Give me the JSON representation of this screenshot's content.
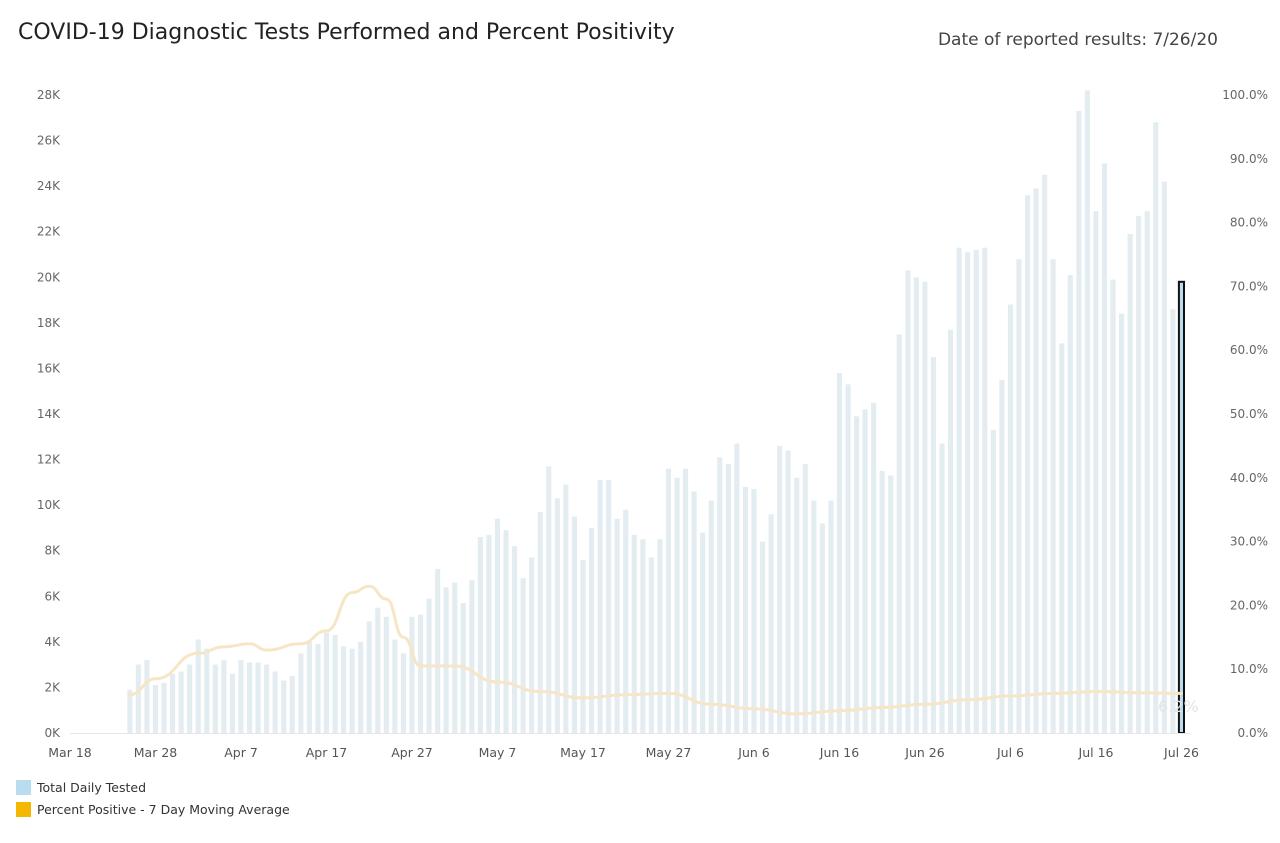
{
  "header": {
    "title": "COVID-19 Diagnostic Tests Performed and Percent Positivity",
    "date_label": "Date of reported results: 7/26/20"
  },
  "legend": {
    "items": [
      {
        "label": "Total Daily Tested",
        "color": "#b9dcef"
      },
      {
        "label": "Percent Positive - 7 Day Moving Average",
        "color": "#f5b800"
      }
    ]
  },
  "chart_data": {
    "type": "bar",
    "bar_color": "#e3ecf1",
    "highlight_bar_color": "#b9dcef",
    "line_color": "#f6e6c5",
    "x_start": "2020-03-18",
    "x_end": "2020-07-27",
    "x_ticks": [
      "Mar 18",
      "Mar 28",
      "Apr 7",
      "Apr 17",
      "Apr 27",
      "May 7",
      "May 17",
      "May 27",
      "Jun 6",
      "Jun 16",
      "Jun 26",
      "Jul 6",
      "Jul 16",
      "Jul 26"
    ],
    "y_left": {
      "ticks": [
        "0K",
        "2K",
        "4K",
        "6K",
        "8K",
        "10K",
        "12K",
        "14K",
        "16K",
        "18K",
        "20K",
        "22K",
        "24K",
        "26K",
        "28K"
      ],
      "min": 0,
      "max": 28000
    },
    "y_right": {
      "ticks": [
        "0.0%",
        "10.0%",
        "20.0%",
        "30.0%",
        "40.0%",
        "50.0%",
        "60.0%",
        "70.0%",
        "80.0%",
        "90.0%",
        "100.0%"
      ],
      "min": 0,
      "max": 100
    },
    "series": [
      {
        "name": "Total Daily Tested",
        "x": [
          "2020-03-25",
          "2020-03-26",
          "2020-03-27",
          "2020-03-28",
          "2020-03-29",
          "2020-03-30",
          "2020-03-31",
          "2020-04-01",
          "2020-04-02",
          "2020-04-03",
          "2020-04-04",
          "2020-04-05",
          "2020-04-06",
          "2020-04-07",
          "2020-04-08",
          "2020-04-09",
          "2020-04-10",
          "2020-04-11",
          "2020-04-12",
          "2020-04-13",
          "2020-04-14",
          "2020-04-15",
          "2020-04-16",
          "2020-04-17",
          "2020-04-18",
          "2020-04-19",
          "2020-04-20",
          "2020-04-21",
          "2020-04-22",
          "2020-04-23",
          "2020-04-24",
          "2020-04-25",
          "2020-04-26",
          "2020-04-27",
          "2020-04-28",
          "2020-04-29",
          "2020-04-30",
          "2020-05-01",
          "2020-05-02",
          "2020-05-03",
          "2020-05-04",
          "2020-05-05",
          "2020-05-06",
          "2020-05-07",
          "2020-05-08",
          "2020-05-09",
          "2020-05-10",
          "2020-05-11",
          "2020-05-12",
          "2020-05-13",
          "2020-05-14",
          "2020-05-15",
          "2020-05-16",
          "2020-05-17",
          "2020-05-18",
          "2020-05-19",
          "2020-05-20",
          "2020-05-21",
          "2020-05-22",
          "2020-05-23",
          "2020-05-24",
          "2020-05-25",
          "2020-05-26",
          "2020-05-27",
          "2020-05-28",
          "2020-05-29",
          "2020-05-30",
          "2020-05-31",
          "2020-06-01",
          "2020-06-02",
          "2020-06-03",
          "2020-06-04",
          "2020-06-05",
          "2020-06-06",
          "2020-06-07",
          "2020-06-08",
          "2020-06-09",
          "2020-06-10",
          "2020-06-11",
          "2020-06-12",
          "2020-06-13",
          "2020-06-14",
          "2020-06-15",
          "2020-06-16",
          "2020-06-17",
          "2020-06-18",
          "2020-06-19",
          "2020-06-20",
          "2020-06-21",
          "2020-06-22",
          "2020-06-23",
          "2020-06-24",
          "2020-06-25",
          "2020-06-26",
          "2020-06-27",
          "2020-06-28",
          "2020-06-29",
          "2020-06-30",
          "2020-07-01",
          "2020-07-02",
          "2020-07-03",
          "2020-07-04",
          "2020-07-05",
          "2020-07-06",
          "2020-07-07",
          "2020-07-08",
          "2020-07-09",
          "2020-07-10",
          "2020-07-11",
          "2020-07-12",
          "2020-07-13",
          "2020-07-14",
          "2020-07-15",
          "2020-07-16",
          "2020-07-17",
          "2020-07-18",
          "2020-07-19",
          "2020-07-20",
          "2020-07-21",
          "2020-07-22",
          "2020-07-23",
          "2020-07-24",
          "2020-07-25",
          "2020-07-26"
        ],
        "values": [
          1900,
          3000,
          3200,
          2100,
          2200,
          2600,
          2700,
          3000,
          4100,
          3700,
          3000,
          3200,
          2600,
          3200,
          3100,
          3100,
          3000,
          2700,
          2300,
          2500,
          3500,
          4000,
          3900,
          4400,
          4300,
          3800,
          3700,
          4000,
          4900,
          5500,
          5100,
          4100,
          3500,
          5100,
          5200,
          5900,
          7200,
          6400,
          6600,
          5700,
          6700,
          8600,
          8700,
          9400,
          8900,
          8200,
          6800,
          7700,
          9700,
          11700,
          10300,
          10900,
          9500,
          7600,
          9000,
          11100,
          11100,
          9400,
          9800,
          8700,
          8500,
          7700,
          8500,
          11600,
          11200,
          11600,
          10600,
          8800,
          10200,
          12100,
          11800,
          12700,
          10800,
          10700,
          8400,
          9600,
          12600,
          12400,
          11200,
          11800,
          10200,
          9200,
          10200,
          15800,
          15300,
          13900,
          14200,
          14500,
          11500,
          11300,
          17500,
          20300,
          20000,
          19800,
          16500,
          12700,
          17700,
          21300,
          21100,
          21200,
          21300,
          13300,
          15500,
          18800,
          20800,
          23600,
          23900,
          24500,
          20800,
          17100,
          20100,
          27300,
          28200,
          22900,
          25000,
          19900,
          18400,
          21900,
          22700,
          22900,
          26800,
          24200,
          18600,
          19800
        ]
      },
      {
        "name": "Percent Positive - 7 Day Moving Average",
        "x": [
          "2020-03-25",
          "2020-03-28",
          "2020-04-02",
          "2020-04-05",
          "2020-04-08",
          "2020-04-10",
          "2020-04-14",
          "2020-04-17",
          "2020-04-20",
          "2020-04-22",
          "2020-04-24",
          "2020-04-26",
          "2020-04-28",
          "2020-05-02",
          "2020-05-07",
          "2020-05-12",
          "2020-05-17",
          "2020-05-22",
          "2020-05-27",
          "2020-06-01",
          "2020-06-06",
          "2020-06-11",
          "2020-06-16",
          "2020-06-21",
          "2020-06-26",
          "2020-07-01",
          "2020-07-06",
          "2020-07-11",
          "2020-07-16",
          "2020-07-21",
          "2020-07-26"
        ],
        "values": [
          6.0,
          8.5,
          12.5,
          13.5,
          14.0,
          13.0,
          14.0,
          16.0,
          22.0,
          23.0,
          21.0,
          15.0,
          10.5,
          10.5,
          8.0,
          6.5,
          5.5,
          6.0,
          6.2,
          4.5,
          3.8,
          3.0,
          3.5,
          4.0,
          4.5,
          5.2,
          5.8,
          6.2,
          6.5,
          6.3,
          6.2
        ]
      }
    ],
    "last_value_label": "6.2%",
    "grid": false,
    "legend_position": "bottom-left"
  }
}
